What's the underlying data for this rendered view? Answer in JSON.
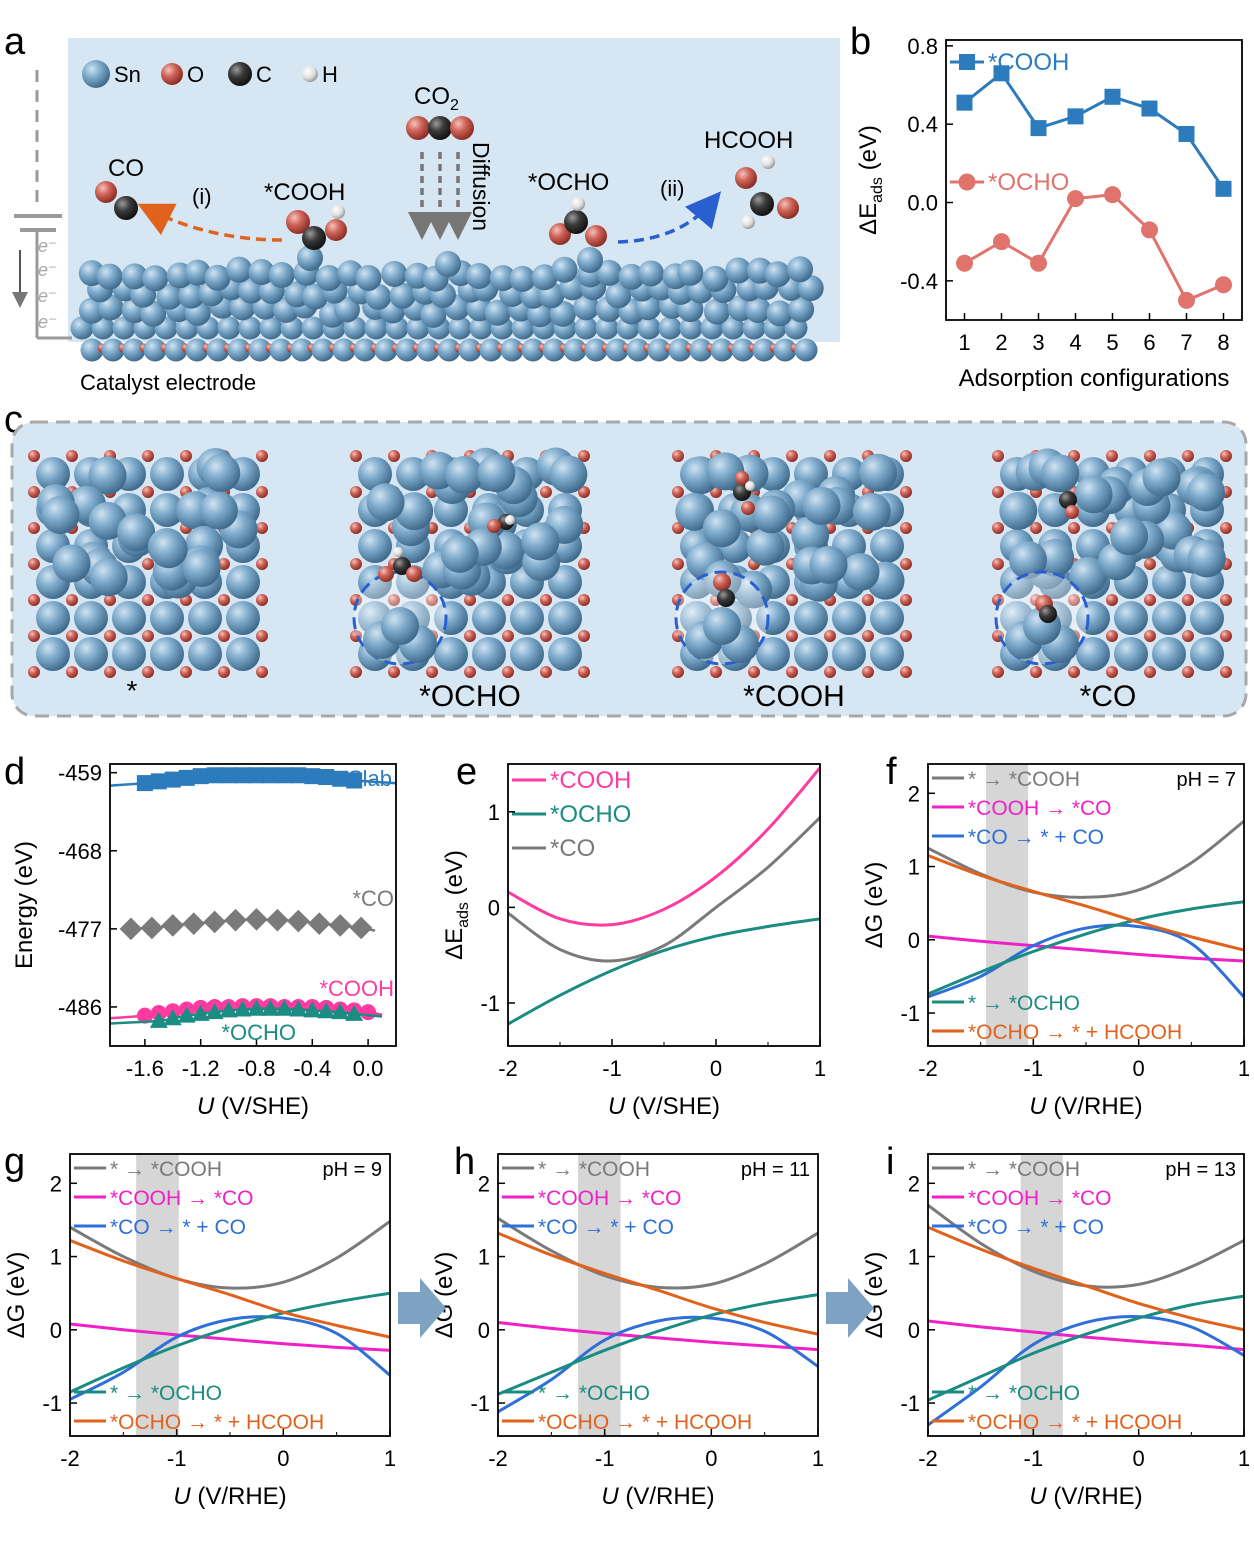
{
  "colors": {
    "sn": "#6f9ec0",
    "o": "#d06a5e",
    "c": "#3a3a3a",
    "h": "#e8e8e8",
    "bg": "#d6e7f3",
    "blue": "#2b7bbd",
    "red": "#e0736c",
    "gray": "#7a7a7a",
    "magenta": "#f020c8",
    "pink": "#ff3aa0",
    "teal": "#1a8c82",
    "orange": "#e0621c",
    "lineblue": "#2e6fd8",
    "arrowfill": "#7ea2c2",
    "dashblue": "#2a5fd0"
  },
  "panel_a": {
    "label": "a",
    "legend": [
      "Sn",
      "O",
      "C",
      "H"
    ],
    "co2_main": "CO",
    "co2_sub": "2",
    "diffusion": "Diffusion",
    "co": "CO",
    "cooh": "*COOH",
    "ocho": "*OCHO",
    "hcooh": "HCOOH",
    "path_i": "(i)",
    "path_ii": "(ii)",
    "electrons": [
      "e⁻",
      "e⁻",
      "e⁻",
      "e⁻"
    ],
    "electrode": "Catalyst electrode"
  },
  "panel_c": {
    "label": "c",
    "structures": [
      "*",
      "*OCHO",
      "*COOH",
      "*CO"
    ]
  },
  "chart_data": [
    {
      "panel": "b",
      "type": "line",
      "x": [
        1,
        2,
        3,
        4,
        5,
        6,
        7,
        8
      ],
      "series": [
        {
          "name": "*COOH",
          "values": [
            0.51,
            0.66,
            0.38,
            0.44,
            0.54,
            0.48,
            0.35,
            0.07
          ]
        },
        {
          "name": "*OCHO",
          "values": [
            -0.31,
            -0.2,
            -0.31,
            0.02,
            0.04,
            -0.14,
            -0.5,
            -0.42
          ]
        }
      ],
      "xlabel": "Adsorption configurations",
      "ylabel_main": "ΔE",
      "ylabel_sub": "ads",
      "ylabel_unit": " (eV)",
      "xticks": [
        "1",
        "2",
        "3",
        "4",
        "5",
        "6",
        "7",
        "8"
      ],
      "yticks": [
        "0.8",
        "0.4",
        "0.0",
        "-0.4"
      ],
      "ylim": [
        -0.6,
        0.83
      ],
      "xlim": [
        0.5,
        8.5
      ]
    },
    {
      "panel": "d",
      "type": "scatter",
      "xlabel_main": "U",
      "xlabel_unit": " (V/SHE)",
      "ylabel": "Energy (eV)",
      "xticks": [
        "-1.6",
        "-1.2",
        "-0.8",
        "-0.4",
        "0.0"
      ],
      "yticks": [
        "-459",
        "-468",
        "-477",
        "-486"
      ],
      "xlim": [
        -1.85,
        0.2
      ],
      "ylim": [
        -490.5,
        -458.0
      ],
      "series": [
        {
          "name": "Slab",
          "x": [
            -1.6,
            -1.5,
            -1.4,
            -1.3,
            -1.2,
            -1.1,
            -1.0,
            -0.9,
            -0.8,
            -0.7,
            -0.6,
            -0.5,
            -0.4,
            -0.3,
            -0.2,
            -0.1
          ],
          "values": [
            -460.2,
            -460.0,
            -459.8,
            -459.6,
            -459.4,
            -459.3,
            -459.3,
            -459.3,
            -459.3,
            -459.3,
            -459.3,
            -459.3,
            -459.4,
            -459.5,
            -459.7,
            -459.9
          ]
        },
        {
          "name": "*CO",
          "x": [
            -1.7,
            -1.55,
            -1.4,
            -1.25,
            -1.1,
            -0.95,
            -0.8,
            -0.65,
            -0.5,
            -0.35,
            -0.2,
            -0.05
          ],
          "values": [
            -477.0,
            -476.9,
            -476.6,
            -476.4,
            -476.2,
            -476.0,
            -475.9,
            -476.0,
            -476.1,
            -476.4,
            -476.6,
            -476.9
          ]
        },
        {
          "name": "*COOH",
          "x": [
            -1.6,
            -1.5,
            -1.4,
            -1.3,
            -1.2,
            -1.1,
            -1.0,
            -0.9,
            -0.8,
            -0.7,
            -0.6,
            -0.5,
            -0.4,
            -0.3,
            -0.2,
            -0.1,
            0.0
          ],
          "values": [
            -487.0,
            -486.7,
            -486.5,
            -486.3,
            -486.1,
            -486.0,
            -486.0,
            -485.9,
            -485.9,
            -485.9,
            -486.0,
            -486.0,
            -486.0,
            -486.1,
            -486.3,
            -486.4,
            -486.6
          ]
        },
        {
          "name": "*OCHO",
          "x": [
            -1.5,
            -1.4,
            -1.3,
            -1.2,
            -1.1,
            -1.0,
            -0.9,
            -0.8,
            -0.7,
            -0.6,
            -0.5,
            -0.4,
            -0.3,
            -0.2,
            -0.1
          ],
          "values": [
            -487.6,
            -487.3,
            -487.0,
            -486.8,
            -486.6,
            -486.4,
            -486.3,
            -486.2,
            -486.2,
            -486.2,
            -486.3,
            -486.4,
            -486.5,
            -486.6,
            -486.8
          ]
        }
      ]
    },
    {
      "panel": "e",
      "type": "line",
      "xlabel_main": "U",
      "xlabel_unit": " (V/SHE)",
      "ylabel_main": "ΔE",
      "ylabel_sub": "ads",
      "ylabel_unit": " (eV)",
      "xticks": [
        "-2",
        "-1",
        "0",
        "1"
      ],
      "yticks": [
        "1",
        "0",
        "-1"
      ],
      "xlim": [
        -2,
        1
      ],
      "ylim": [
        -1.45,
        1.5
      ],
      "x": [
        -2,
        -1.5,
        -1,
        -0.5,
        0,
        0.5,
        1
      ],
      "series": [
        {
          "name": "*COOH",
          "values": [
            0.16,
            -0.12,
            -0.18,
            -0.02,
            0.32,
            0.82,
            1.46
          ]
        },
        {
          "name": "*OCHO",
          "values": [
            -1.22,
            -0.92,
            -0.66,
            -0.45,
            -0.3,
            -0.2,
            -0.12
          ]
        },
        {
          "name": "*CO",
          "values": [
            -0.06,
            -0.44,
            -0.56,
            -0.4,
            0.0,
            0.42,
            0.94
          ]
        }
      ]
    },
    {
      "panel": "f",
      "type": "line",
      "xlabel_main": "U",
      "xlabel_unit": " (V/RHE)",
      "ylabel_main": "ΔG",
      "ylabel_unit": " (eV)",
      "annotation": "pH = 7",
      "xticks": [
        "-2",
        "-1",
        "0",
        "1"
      ],
      "yticks": [
        "2",
        "1",
        "0",
        "-1"
      ],
      "xlim": [
        -2,
        1
      ],
      "ylim": [
        -1.45,
        2.4
      ],
      "shade": [
        -1.45,
        -1.05
      ],
      "x": [
        -2,
        -1.5,
        -1,
        -0.5,
        0,
        0.5,
        1
      ],
      "series": [
        {
          "name": "* → *COOH",
          "values": [
            1.25,
            0.9,
            0.65,
            0.58,
            0.68,
            1.05,
            1.62
          ]
        },
        {
          "name": "*COOH → *CO",
          "values": [
            0.05,
            -0.02,
            -0.08,
            -0.14,
            -0.2,
            -0.25,
            -0.29
          ]
        },
        {
          "name": "*CO → * + CO",
          "values": [
            -0.78,
            -0.5,
            -0.08,
            0.16,
            0.18,
            -0.05,
            -0.78
          ]
        },
        {
          "name": "* → *OCHO",
          "values": [
            -0.74,
            -0.44,
            -0.16,
            0.08,
            0.28,
            0.42,
            0.52
          ]
        },
        {
          "name": "*OCHO → * + HCOOH",
          "values": [
            1.15,
            0.88,
            0.66,
            0.46,
            0.24,
            0.04,
            -0.14
          ]
        }
      ]
    },
    {
      "panel": "g",
      "type": "line",
      "xlabel_main": "U",
      "xlabel_unit": " (V/RHE)",
      "ylabel_main": "ΔG",
      "ylabel_unit": " (eV)",
      "annotation": "pH = 9",
      "xticks": [
        "-2",
        "-1",
        "0",
        "1"
      ],
      "yticks": [
        "2",
        "1",
        "0",
        "-1"
      ],
      "xlim": [
        -2,
        1
      ],
      "ylim": [
        -1.45,
        2.4
      ],
      "shade": [
        -1.38,
        -0.98
      ],
      "x": [
        -2,
        -1.5,
        -1,
        -0.5,
        0,
        0.5,
        1
      ],
      "series": [
        {
          "name": "* → *COOH",
          "values": [
            1.4,
            1.0,
            0.7,
            0.57,
            0.65,
            0.98,
            1.48
          ]
        },
        {
          "name": "*COOH → *CO",
          "values": [
            0.08,
            0.0,
            -0.07,
            -0.13,
            -0.19,
            -0.24,
            -0.28
          ]
        },
        {
          "name": "*CO → * + CO",
          "values": [
            -0.95,
            -0.58,
            -0.1,
            0.14,
            0.16,
            -0.05,
            -0.62
          ]
        },
        {
          "name": "* → *OCHO",
          "values": [
            -0.85,
            -0.52,
            -0.22,
            0.03,
            0.23,
            0.38,
            0.5
          ]
        },
        {
          "name": "*OCHO → * + HCOOH",
          "values": [
            1.22,
            0.94,
            0.7,
            0.48,
            0.24,
            0.06,
            -0.1
          ]
        }
      ]
    },
    {
      "panel": "h",
      "type": "line",
      "xlabel_main": "U",
      "xlabel_unit": " (V/RHE)",
      "ylabel_main": "ΔG",
      "ylabel_unit": " (eV)",
      "annotation": "pH = 11",
      "xticks": [
        "-2",
        "-1",
        "0",
        "1"
      ],
      "yticks": [
        "2",
        "1",
        "0",
        "-1"
      ],
      "xlim": [
        -2,
        1
      ],
      "ylim": [
        -1.45,
        2.4
      ],
      "shade": [
        -1.25,
        -0.85
      ],
      "x": [
        -2,
        -1.5,
        -1,
        -0.5,
        0,
        0.5,
        1
      ],
      "series": [
        {
          "name": "* → *COOH",
          "values": [
            1.52,
            1.08,
            0.74,
            0.58,
            0.62,
            0.9,
            1.32
          ]
        },
        {
          "name": "*COOH → *CO",
          "values": [
            0.1,
            0.02,
            -0.05,
            -0.11,
            -0.17,
            -0.22,
            -0.27
          ]
        },
        {
          "name": "*CO → * + CO",
          "values": [
            -1.12,
            -0.68,
            -0.14,
            0.12,
            0.16,
            -0.02,
            -0.5
          ]
        },
        {
          "name": "* → *OCHO",
          "values": [
            -0.88,
            -0.58,
            -0.28,
            -0.02,
            0.2,
            0.36,
            0.48
          ]
        },
        {
          "name": "*OCHO → * + HCOOH",
          "values": [
            1.32,
            1.02,
            0.77,
            0.54,
            0.3,
            0.1,
            -0.06
          ]
        }
      ]
    },
    {
      "panel": "i",
      "type": "line",
      "xlabel_main": "U",
      "xlabel_unit": " (V/RHE)",
      "ylabel_main": "ΔG",
      "ylabel_unit": " (eV)",
      "annotation": "pH = 13",
      "xticks": [
        "-2",
        "-1",
        "0",
        "1"
      ],
      "yticks": [
        "2",
        "1",
        "0",
        "-1"
      ],
      "xlim": [
        -2,
        1
      ],
      "ylim": [
        -1.45,
        2.4
      ],
      "shade": [
        -1.12,
        -0.72
      ],
      "x": [
        -2,
        -1.5,
        -1,
        -0.5,
        0,
        0.5,
        1
      ],
      "series": [
        {
          "name": "* → *COOH",
          "values": [
            1.7,
            1.18,
            0.8,
            0.6,
            0.62,
            0.86,
            1.22
          ]
        },
        {
          "name": "*COOH → *CO",
          "values": [
            0.12,
            0.04,
            -0.03,
            -0.1,
            -0.16,
            -0.21,
            -0.27
          ]
        },
        {
          "name": "*CO → * + CO",
          "values": [
            -1.3,
            -0.78,
            -0.2,
            0.1,
            0.18,
            0.04,
            -0.35
          ]
        },
        {
          "name": "* → *OCHO",
          "values": [
            -0.96,
            -0.64,
            -0.32,
            -0.06,
            0.16,
            0.34,
            0.46
          ]
        },
        {
          "name": "*OCHO → * + HCOOH",
          "values": [
            1.4,
            1.1,
            0.84,
            0.6,
            0.36,
            0.16,
            0.0
          ]
        }
      ]
    }
  ]
}
